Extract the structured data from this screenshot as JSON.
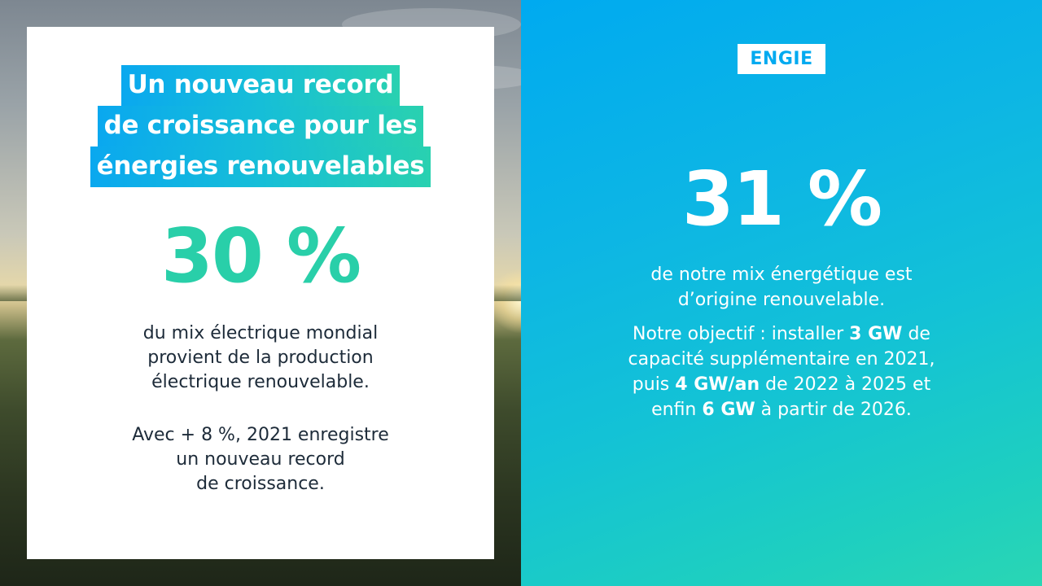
{
  "left": {
    "headline": [
      "Un nouveau record",
      "de croissance pour les",
      "énergies renouvelables"
    ],
    "stat": "30 %",
    "description": [
      "du mix électrique mondial",
      "provient de la production",
      "électrique renouvelable."
    ],
    "note": [
      "Avec + 8 %, 2021 enregistre",
      "un nouveau record",
      "de croissance."
    ]
  },
  "right": {
    "logo": "ENGIE",
    "stat": "31 %",
    "description": [
      "de notre mix énergétique est",
      "d’origine renouvelable."
    ],
    "objective": {
      "l1_a": "Notre objectif : installer ",
      "l1_b": "3 GW",
      "l1_c": " de",
      "l2": "capacité supplémentaire en 2021,",
      "l3_a": "puis ",
      "l3_b": "4 GW/an",
      "l3_c": " de 2022 à 2025 et",
      "l4_a": "enfin ",
      "l4_b": "6 GW",
      "l4_c": " à partir de 2026."
    }
  },
  "colors": {
    "accent_teal": "#29cfa9",
    "accent_blue": "#00aaf0",
    "text_dark": "#1d2b39"
  }
}
